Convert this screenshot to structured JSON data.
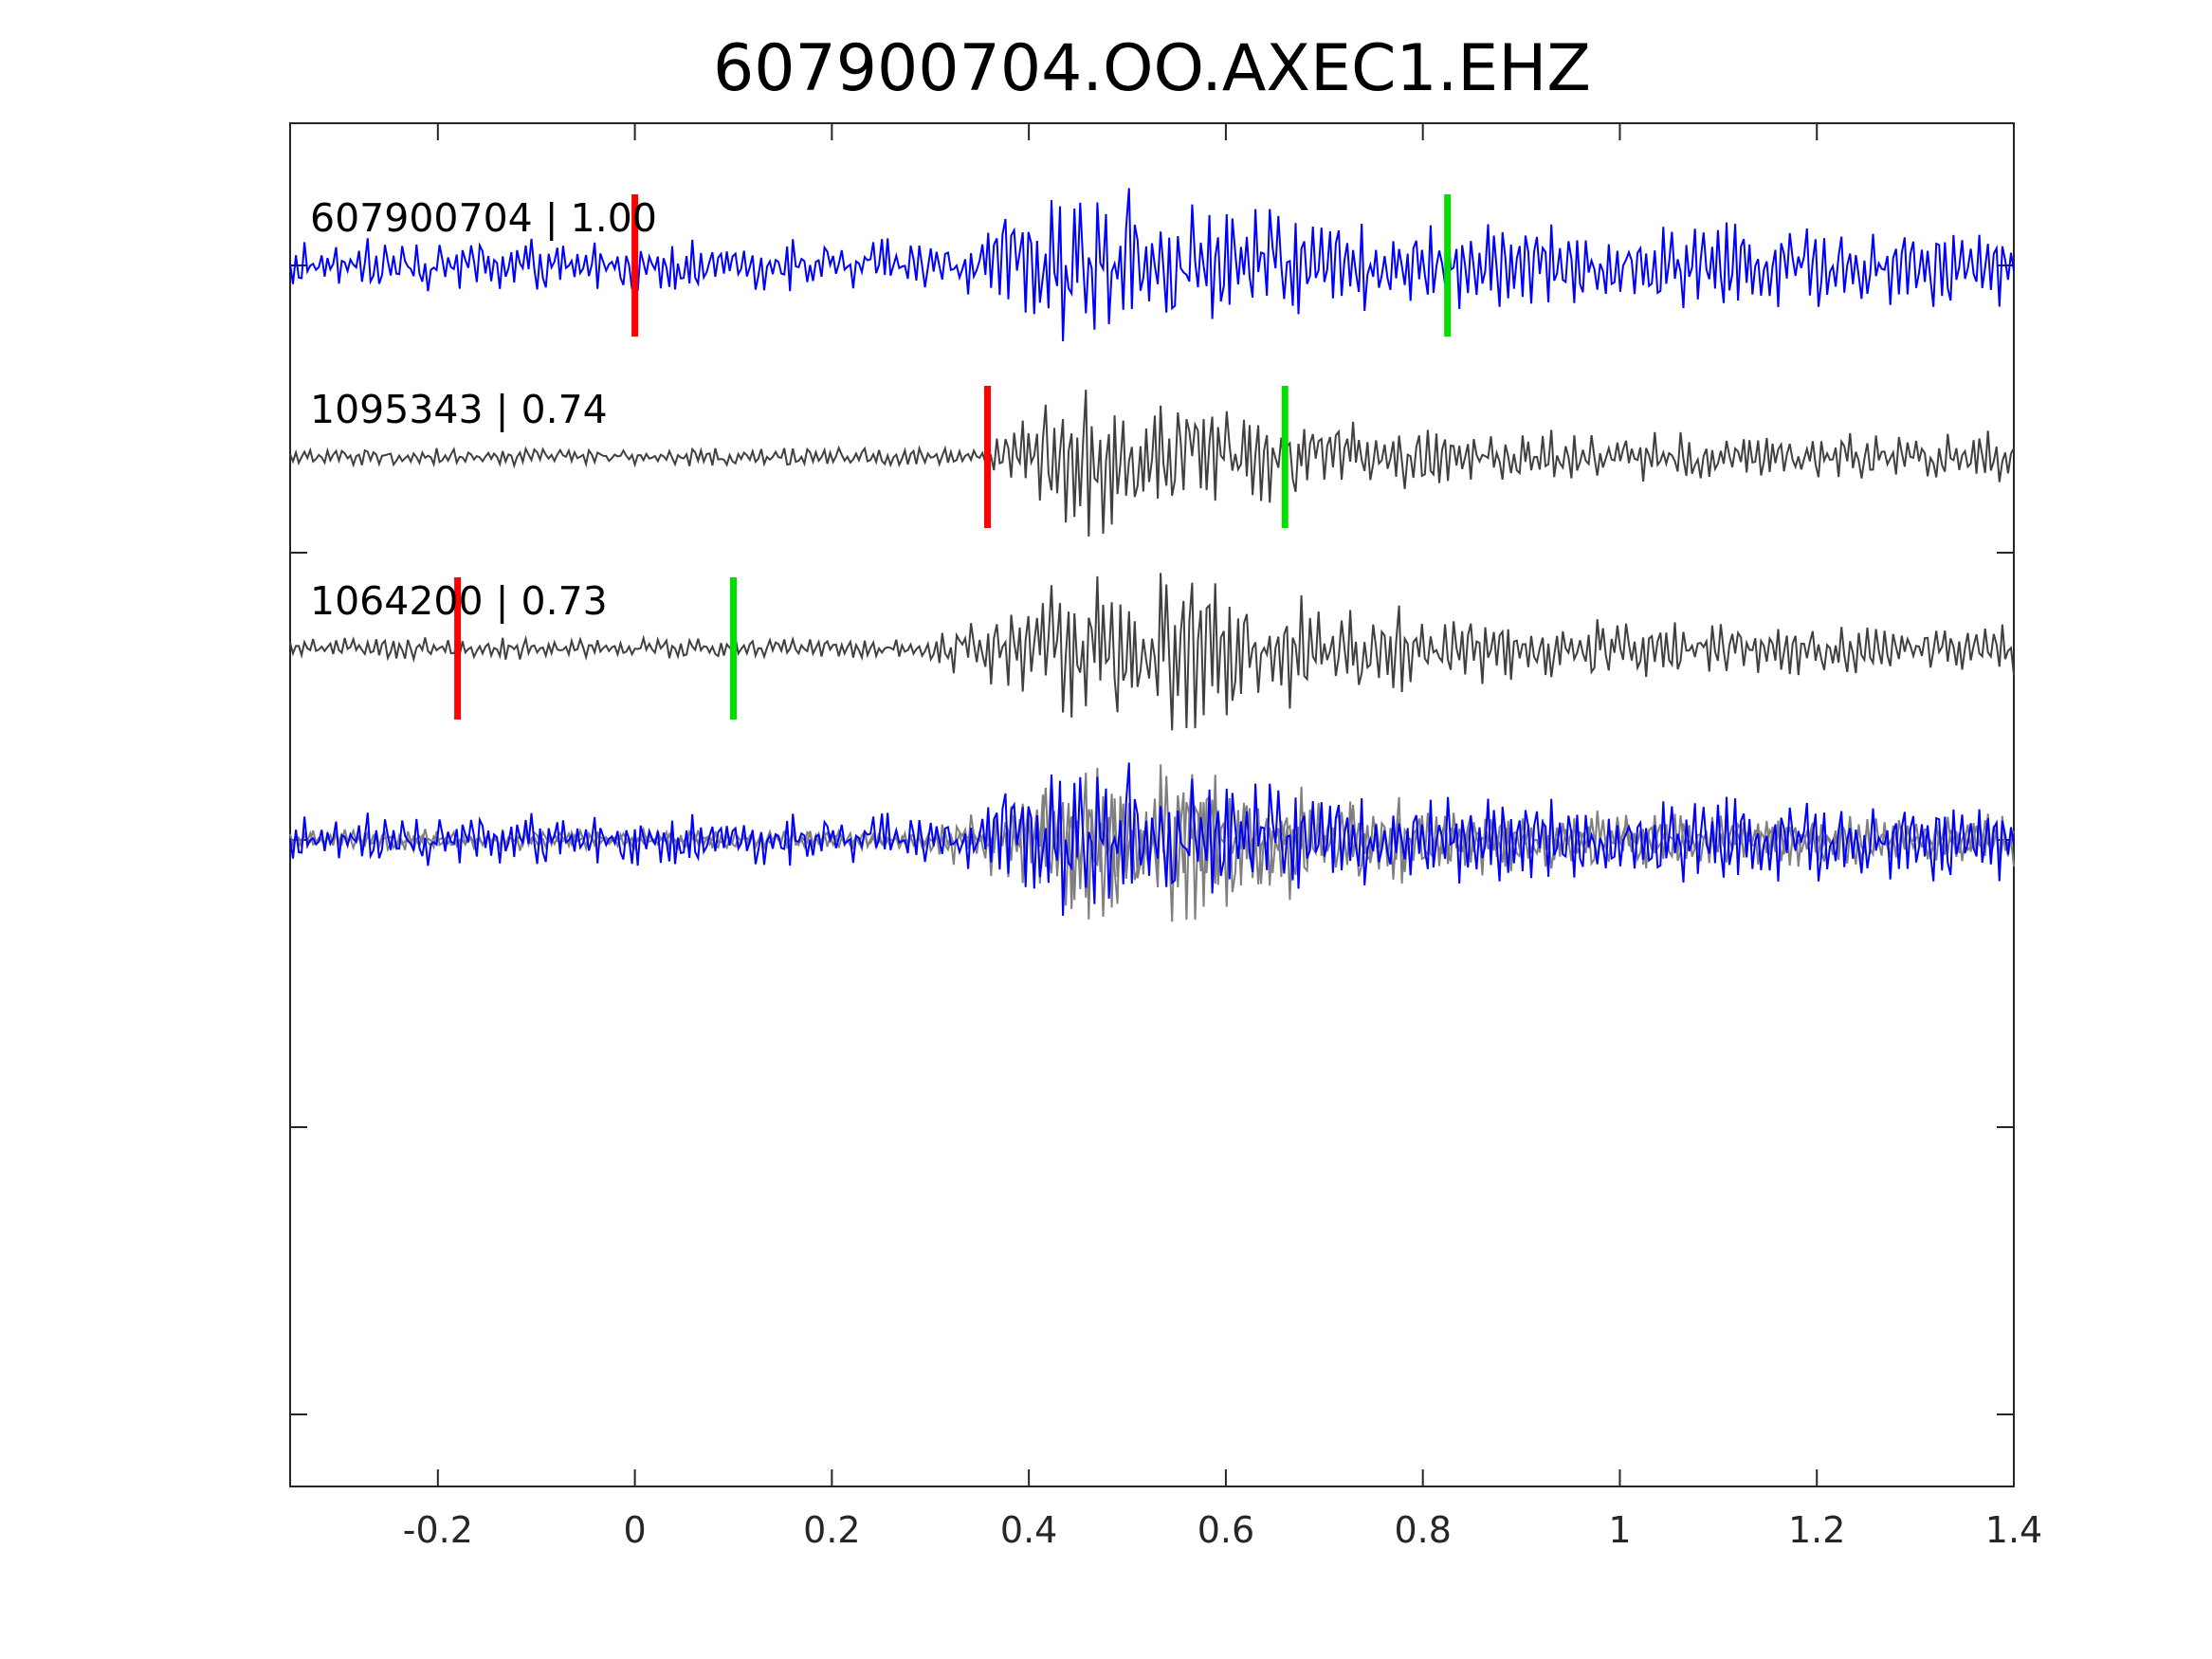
{
  "chart_data": {
    "type": "line",
    "title": "607900704.OO.AXEC1.EHZ",
    "xlim": [
      -0.35,
      1.4
    ],
    "x_ticks": [
      "-0.2",
      "0",
      "0.2",
      "0.4",
      "0.6",
      "0.8",
      "1",
      "1.2",
      "1.4"
    ],
    "x_tick_values": [
      -0.2,
      0,
      0.2,
      0.4,
      0.6,
      0.8,
      1.0,
      1.2,
      1.4
    ],
    "grid": false,
    "traces": [
      {
        "label": "607900704 | 1.00",
        "event_id": "607900704",
        "correlation": 1.0,
        "color": "#0000ff",
        "p_pick_time": 0.0,
        "s_pick_time": 0.825,
        "envelope": {
          "pre": 0.3,
          "onset": 0.33,
          "peak_time": 0.5,
          "peak": 0.95,
          "coda": 0.45,
          "decay": 2.0
        }
      },
      {
        "label": "1095343 | 0.74",
        "event_id": "1095343",
        "correlation": 0.74,
        "color": "#404040",
        "p_pick_time": 0.358,
        "s_pick_time": 0.66,
        "envelope": {
          "pre": 0.1,
          "onset": 0.35,
          "peak_time": 0.5,
          "peak": 0.95,
          "coda": 0.28,
          "decay": 2.5
        }
      },
      {
        "label": "1064200 | 0.73",
        "event_id": "1064200",
        "correlation": 0.73,
        "color": "#404040",
        "p_pick_time": -0.18,
        "s_pick_time": 0.1,
        "envelope": {
          "pre": 0.12,
          "onset": 0.29,
          "peak_time": 0.55,
          "peak": 1.0,
          "coda": 0.28,
          "decay": 2.0
        }
      }
    ],
    "overlay": {
      "description_series": [
        "607900704",
        "1095343",
        "1064200"
      ],
      "colors": [
        "#0000ff",
        "#7f7f7f",
        "#7f7f7f"
      ]
    },
    "pick_colors": {
      "p": "#ff0000",
      "s": "#00dd00"
    }
  }
}
